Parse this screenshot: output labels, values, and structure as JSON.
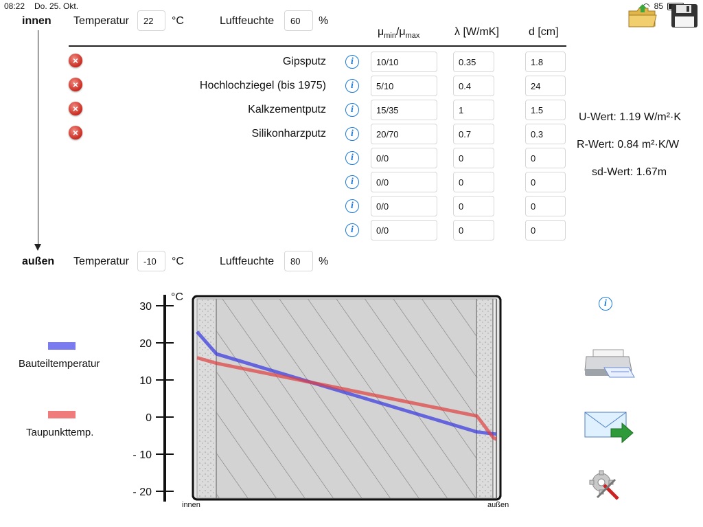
{
  "status": {
    "time": "08:22",
    "date": "Do. 25. Okt.",
    "battery": "85"
  },
  "inside": {
    "label": "innen",
    "temp_label": "Temperatur",
    "temp_value": "22",
    "temp_unit": "°C",
    "hum_label": "Luftfeuchte",
    "hum_value": "60",
    "hum_unit": "%"
  },
  "outside": {
    "label": "außen",
    "temp_label": "Temperatur",
    "temp_value": "-10",
    "temp_unit": "°C",
    "hum_label": "Luftfeuchte",
    "hum_value": "80",
    "hum_unit": "%"
  },
  "table": {
    "header_mu_main": "μ",
    "header_mu_sub1": "min",
    "header_mu_sep": "/μ",
    "header_mu_sub2": "max",
    "header_lambda": "λ [W/mK]",
    "header_d": "d [cm]",
    "rows": [
      {
        "name": "Gipsputz",
        "mu": "10/10",
        "lambda": "0.35",
        "d": "1.8"
      },
      {
        "name": "Hochlochziegel (bis 1975)",
        "mu": "5/10",
        "lambda": "0.4",
        "d": "24"
      },
      {
        "name": "Kalkzementputz",
        "mu": "15/35",
        "lambda": "1",
        "d": "1.5"
      },
      {
        "name": "Silikonharzputz",
        "mu": "20/70",
        "lambda": "0.7",
        "d": "0.3"
      },
      {
        "name": "",
        "mu": "0/0",
        "lambda": "0",
        "d": "0"
      },
      {
        "name": "",
        "mu": "0/0",
        "lambda": "0",
        "d": "0"
      },
      {
        "name": "",
        "mu": "0/0",
        "lambda": "0",
        "d": "0"
      },
      {
        "name": "",
        "mu": "0/0",
        "lambda": "0",
        "d": "0"
      }
    ]
  },
  "results": {
    "u_value": "U-Wert: 1.19 W/m²·K",
    "r_value": "R-Wert: 0.84 m²·K/W",
    "sd_value": "sd-Wert: 1.67m"
  },
  "legend": {
    "component_temp": "Bauteiltemperatur",
    "dewpoint_temp": "Taupunkttemp.",
    "component_color": "#7b7bf0",
    "dewpoint_color": "#f07b7b"
  },
  "chart_data": {
    "type": "line",
    "y_unit": "°C",
    "ylim": [
      -20,
      30
    ],
    "yticks": [
      "30",
      "20",
      "10",
      "0",
      "- 10",
      "- 20"
    ],
    "x_left_label": "innen",
    "x_right_label": "außen",
    "series": [
      {
        "name": "Bauteiltemperatur",
        "points": [
          [
            0,
            23
          ],
          [
            1.8,
            17
          ],
          [
            25.8,
            -4
          ],
          [
            27.3,
            -4.5
          ],
          [
            27.6,
            -4.6
          ]
        ]
      },
      {
        "name": "Taupunkttemp.",
        "points": [
          [
            0,
            16
          ],
          [
            1.8,
            14.5
          ],
          [
            25.8,
            0.3
          ],
          [
            27.3,
            -5.5
          ],
          [
            27.6,
            -6
          ]
        ]
      }
    ],
    "layers_cm": [
      1.8,
      24,
      1.5,
      0.3
    ]
  },
  "icons": [
    "open-folder-icon",
    "save-floppy-icon",
    "printer-icon",
    "mail-send-icon",
    "settings-tools-icon",
    "info-icon"
  ]
}
